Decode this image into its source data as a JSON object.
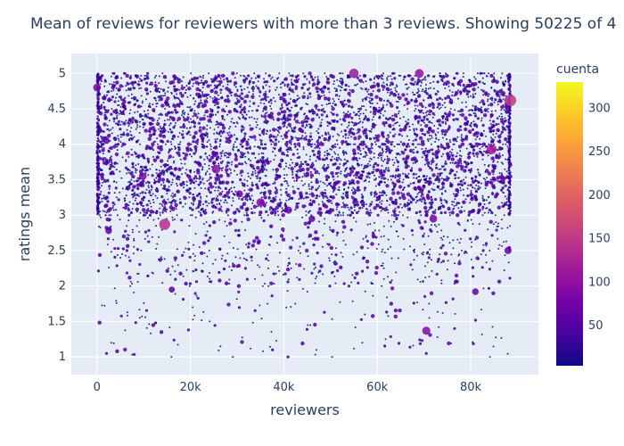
{
  "chart_data": {
    "type": "scatter",
    "title": "Mean of reviews for reviewers with more than 3 reviews. Showing 50225 of 4",
    "xlabel": "reviewers",
    "ylabel": "ratings mean",
    "xlim": [
      -5500,
      94500
    ],
    "ylim": [
      0.75,
      5.28
    ],
    "x_ticks": [
      0,
      20000,
      40000,
      60000,
      80000
    ],
    "x_tick_labels": [
      "0",
      "20k",
      "40k",
      "60k",
      "80k"
    ],
    "y_ticks": [
      1,
      1.5,
      2,
      2.5,
      3,
      3.5,
      4,
      4.5,
      5
    ],
    "y_tick_labels": [
      "1",
      "1.5",
      "2",
      "2.5",
      "3",
      "3.5",
      "4",
      "4.5",
      "5"
    ],
    "grid": true,
    "colorbar": {
      "title": "cuenta",
      "range": [
        4,
        330
      ],
      "ticks": [
        50,
        100,
        150,
        200,
        250,
        300
      ],
      "tick_labels": [
        "50",
        "100",
        "150",
        "200",
        "250",
        "300"
      ],
      "colorscale": [
        "#0d0887",
        "#46039f",
        "#7201a8",
        "#9c179e",
        "#bd3786",
        "#d8576b",
        "#ed7953",
        "#fb9f3a",
        "#fdca26",
        "#f0f921"
      ]
    },
    "points_note_x_range": [
      0,
      88500
    ],
    "highlight_points": [
      {
        "x": 14500,
        "y": 2.87,
        "c": 140
      },
      {
        "x": 88500,
        "y": 4.62,
        "c": 150
      },
      {
        "x": 70500,
        "y": 1.37,
        "c": 90
      },
      {
        "x": 88000,
        "y": 2.5,
        "c": 70
      },
      {
        "x": 9800,
        "y": 3.55,
        "c": 80
      },
      {
        "x": 55000,
        "y": 5.0,
        "c": 110
      },
      {
        "x": 69000,
        "y": 5.0,
        "c": 100
      },
      {
        "x": 81000,
        "y": 1.92,
        "c": 60
      },
      {
        "x": 16000,
        "y": 1.95,
        "c": 50
      },
      {
        "x": 35000,
        "y": 3.18,
        "c": 90
      },
      {
        "x": 41000,
        "y": 3.07,
        "c": 70
      },
      {
        "x": 25500,
        "y": 3.65,
        "c": 100
      },
      {
        "x": 30500,
        "y": 3.3,
        "c": 70
      },
      {
        "x": 84500,
        "y": 3.93,
        "c": 120
      },
      {
        "x": 2000,
        "y": 4.05,
        "c": 60
      },
      {
        "x": 0,
        "y": 4.8,
        "c": 80
      },
      {
        "x": 46000,
        "y": 2.95,
        "c": 60
      },
      {
        "x": 72000,
        "y": 2.95,
        "c": 80
      },
      {
        "x": 2500,
        "y": 2.78,
        "c": 60
      }
    ]
  }
}
